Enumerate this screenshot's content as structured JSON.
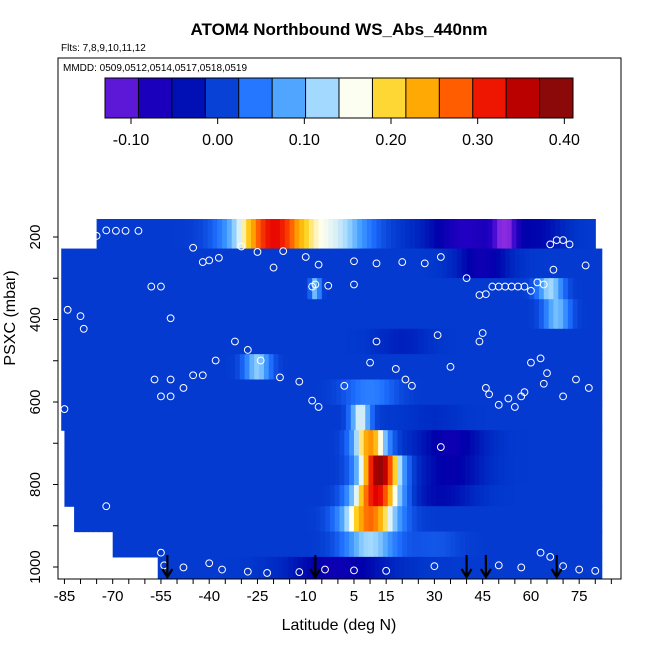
{
  "chart_data": {
    "type": "heatmap",
    "title": "ATOM4 Northbound WS_Abs_440nm",
    "subtitle_flights": "Flts: 7,8,9,10,11,12",
    "subtitle_dates": "MMDD: 0509,0512,0514,0517,0518,0519",
    "xlabel": "Latitude (deg N)",
    "ylabel": "PSXC (mbar)",
    "xlim": [
      -87,
      88
    ],
    "ylim": [
      1010,
      130
    ],
    "y_reversed": true,
    "x_tick_labels": [
      "-85",
      "-70",
      "-55",
      "-40",
      "-25",
      "-10",
      "5",
      "15",
      "30",
      "45",
      "60",
      "75"
    ],
    "y_tick_labels": [
      "200",
      "400",
      "600",
      "800",
      "1000"
    ],
    "colorbar": {
      "range": [
        -0.13,
        0.41
      ],
      "tick_labels": [
        "-0.10",
        "0.00",
        "0.10",
        "0.20",
        "0.30",
        "0.40"
      ],
      "colors": [
        "#8a2be2",
        "#2a00c8",
        "#0000aa",
        "#0032c8",
        "#1e6eff",
        "#46a0ff",
        "#a0d8ff",
        "#fffff0",
        "#ffd21e",
        "#ffa000",
        "#ff4600",
        "#e60000",
        "#a00000",
        "#781010"
      ]
    },
    "background_value": 0.0,
    "layers": [
      {
        "p": [
          160,
          230
        ],
        "lat_start": -75,
        "lat_end": 80,
        "features": [
          {
            "lat": -20,
            "val": 0.32,
            "w": 12
          },
          {
            "lat": 0,
            "val": 0.12,
            "w": 10
          },
          {
            "lat": 40,
            "val": -0.08,
            "w": 12
          },
          {
            "lat": 52,
            "val": -0.1,
            "w": 4
          },
          {
            "lat": 62,
            "val": -0.04,
            "w": 8
          }
        ]
      },
      {
        "p": [
          230,
          300
        ],
        "lat_start": -86,
        "lat_end": 82,
        "features": [
          {
            "lat": 45,
            "val": -0.06,
            "w": 8
          }
        ]
      },
      {
        "p": [
          300,
          350
        ],
        "lat_start": -86,
        "lat_end": 82,
        "features": [
          {
            "lat": -7,
            "val": 0.1,
            "w": 1.5
          },
          {
            "lat": 66,
            "val": 0.12,
            "w": 4
          }
        ]
      },
      {
        "p": [
          350,
          420
        ],
        "lat_start": -86,
        "lat_end": 82,
        "features": [
          {
            "lat": 68,
            "val": 0.1,
            "w": 4
          }
        ]
      },
      {
        "p": [
          420,
          480
        ],
        "lat_start": -86,
        "lat_end": 82,
        "features": [
          {
            "lat": 20,
            "val": -0.02,
            "w": 8
          }
        ]
      },
      {
        "p": [
          480,
          540
        ],
        "lat_start": -86,
        "lat_end": 82,
        "features": [
          {
            "lat": -25,
            "val": 0.11,
            "w": 4
          }
        ]
      },
      {
        "p": [
          540,
          600
        ],
        "lat_start": -86,
        "lat_end": 82,
        "features": [
          {
            "lat": 10,
            "val": 0.05,
            "w": 8
          }
        ]
      },
      {
        "p": [
          600,
          660
        ],
        "lat_start": -86,
        "lat_end": 82,
        "features": [
          {
            "lat": 7,
            "val": 0.15,
            "w": 3
          },
          {
            "lat": 30,
            "val": -0.01,
            "w": 8
          }
        ]
      },
      {
        "p": [
          660,
          720
        ],
        "lat_start": -85,
        "lat_end": 82,
        "features": [
          {
            "lat": 10,
            "val": 0.25,
            "w": 5
          },
          {
            "lat": 35,
            "val": -0.06,
            "w": 10
          }
        ]
      },
      {
        "p": [
          720,
          790
        ],
        "lat_start": -85,
        "lat_end": 82,
        "features": [
          {
            "lat": 13,
            "val": 0.38,
            "w": 6
          },
          {
            "lat": 35,
            "val": -0.05,
            "w": 10
          }
        ]
      },
      {
        "p": [
          790,
          840
        ],
        "lat_start": -85,
        "lat_end": 82,
        "features": [
          {
            "lat": 12,
            "val": 0.33,
            "w": 7
          },
          {
            "lat": 32,
            "val": -0.04,
            "w": 10
          }
        ]
      },
      {
        "p": [
          840,
          900
        ],
        "lat_start": -82,
        "lat_end": 82,
        "features": [
          {
            "lat": 10,
            "val": 0.27,
            "w": 8
          }
        ]
      },
      {
        "p": [
          900,
          960
        ],
        "lat_start": -70,
        "lat_end": 82,
        "features": [
          {
            "lat": 10,
            "val": 0.12,
            "w": 8
          },
          {
            "lat": 30,
            "val": 0.02,
            "w": 8
          }
        ]
      },
      {
        "p": [
          960,
          1010
        ],
        "lat_start": -56,
        "lat_end": 82,
        "features": [
          {
            "lat": 0,
            "val": -0.06,
            "w": 15
          }
        ]
      }
    ],
    "observation_points": [
      [
        -72,
        187
      ],
      [
        -69,
        188
      ],
      [
        -66,
        188
      ],
      [
        -62,
        188
      ],
      [
        -75,
        200
      ],
      [
        -78,
        205
      ],
      [
        -85,
        212
      ],
      [
        -83,
        210
      ],
      [
        -45,
        228
      ],
      [
        -30,
        225
      ],
      [
        -25,
        238
      ],
      [
        -17,
        236
      ],
      [
        -40,
        258
      ],
      [
        -37,
        252
      ],
      [
        -42,
        262
      ],
      [
        -20,
        275
      ],
      [
        -10,
        250
      ],
      [
        -6,
        268
      ],
      [
        -8,
        320
      ],
      [
        5,
        260
      ],
      [
        12,
        265
      ],
      [
        20,
        262
      ],
      [
        27,
        265
      ],
      [
        32,
        250
      ],
      [
        -7,
        315
      ],
      [
        -3,
        318
      ],
      [
        5,
        315
      ],
      [
        40,
        300
      ],
      [
        44,
        340
      ],
      [
        46,
        338
      ],
      [
        48,
        320
      ],
      [
        50,
        320
      ],
      [
        52,
        320
      ],
      [
        54,
        320
      ],
      [
        56,
        320
      ],
      [
        58,
        320
      ],
      [
        60,
        330
      ],
      [
        62,
        310
      ],
      [
        64,
        315
      ],
      [
        67,
        280
      ],
      [
        66,
        220
      ],
      [
        68,
        210
      ],
      [
        70,
        210
      ],
      [
        72,
        220
      ],
      [
        77,
        270
      ],
      [
        -58,
        320
      ],
      [
        -55,
        320
      ],
      [
        -84,
        375
      ],
      [
        -80,
        390
      ],
      [
        -79,
        420
      ],
      [
        -52,
        395
      ],
      [
        -32,
        450
      ],
      [
        -28,
        470
      ],
      [
        -38,
        495
      ],
      [
        -45,
        530
      ],
      [
        -52,
        540
      ],
      [
        -48,
        560
      ],
      [
        -57,
        540
      ],
      [
        -52,
        580
      ],
      [
        -55,
        580
      ],
      [
        -42,
        530
      ],
      [
        -24,
        495
      ],
      [
        -18,
        535
      ],
      [
        -12,
        545
      ],
      [
        -8,
        590
      ],
      [
        -6,
        605
      ],
      [
        2,
        555
      ],
      [
        10,
        500
      ],
      [
        12,
        450
      ],
      [
        18,
        515
      ],
      [
        21,
        540
      ],
      [
        23,
        555
      ],
      [
        31,
        435
      ],
      [
        35,
        510
      ],
      [
        44,
        450
      ],
      [
        45,
        430
      ],
      [
        46,
        560
      ],
      [
        47,
        575
      ],
      [
        50,
        600
      ],
      [
        53,
        585
      ],
      [
        55,
        605
      ],
      [
        57,
        580
      ],
      [
        58,
        570
      ],
      [
        60,
        500
      ],
      [
        63,
        490
      ],
      [
        64,
        550
      ],
      [
        65,
        525
      ],
      [
        70,
        580
      ],
      [
        74,
        540
      ],
      [
        78,
        560
      ],
      [
        -85,
        610
      ],
      [
        -72,
        840
      ],
      [
        -55,
        950
      ],
      [
        -54,
        980
      ],
      [
        -48,
        985
      ],
      [
        -40,
        975
      ],
      [
        -36,
        990
      ],
      [
        -28,
        995
      ],
      [
        -22,
        998
      ],
      [
        -12,
        996
      ],
      [
        -4,
        990
      ],
      [
        5,
        992
      ],
      [
        15,
        993
      ],
      [
        30,
        982
      ],
      [
        50,
        980
      ],
      [
        57,
        985
      ],
      [
        63,
        950
      ],
      [
        66,
        960
      ],
      [
        70,
        982
      ],
      [
        75,
        990
      ],
      [
        80,
        993
      ],
      [
        32,
        700
      ]
    ],
    "flight_markers_lat": [
      -53,
      -7,
      40,
      46,
      68
    ]
  }
}
